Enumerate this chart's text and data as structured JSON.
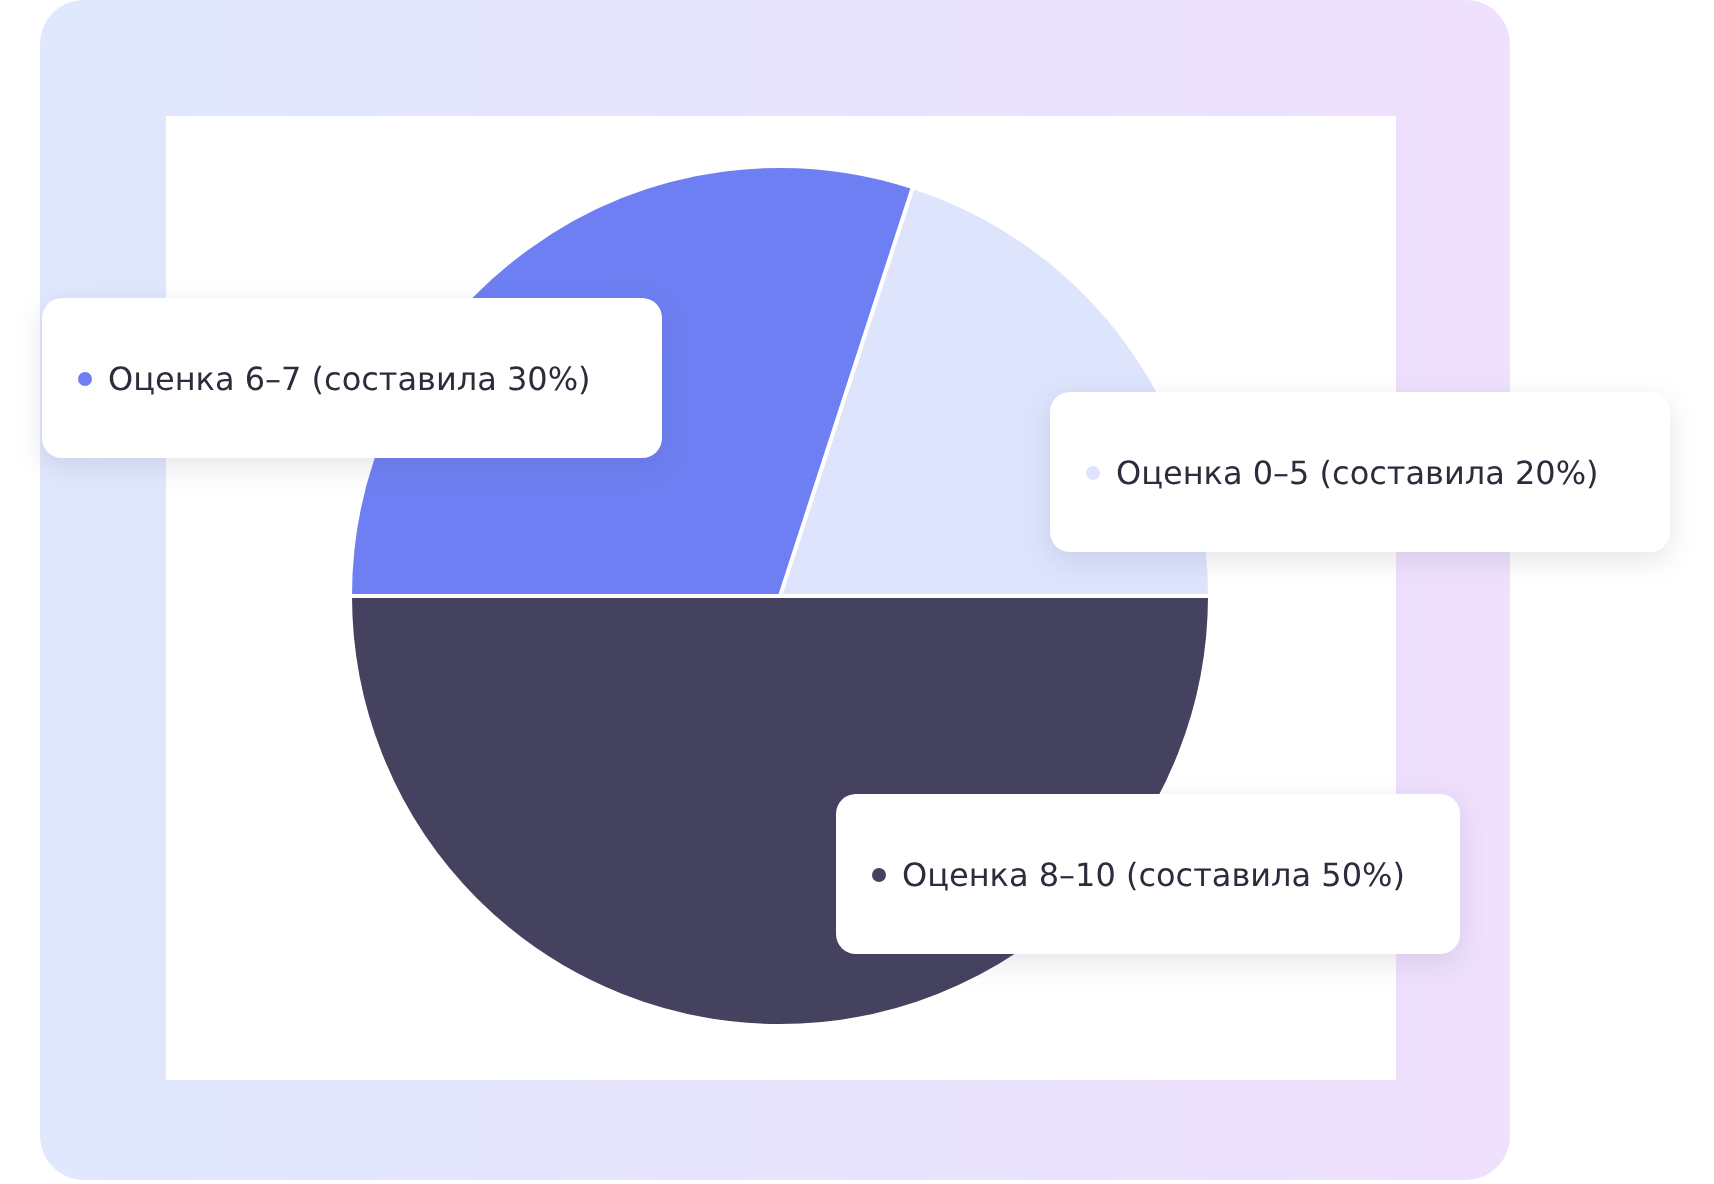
{
  "chart_data": {
    "type": "pie",
    "categories": [
      "Оценка 0–5 (составила 20%)",
      "Оценка 6–7 (составила 30%)",
      "Оценка 8–10 (составила 50%)"
    ],
    "values": [
      20,
      30,
      50
    ],
    "colors": [
      "#dde4fc",
      "#6e7ff3",
      "#44425e"
    ],
    "legend": "right"
  }
}
